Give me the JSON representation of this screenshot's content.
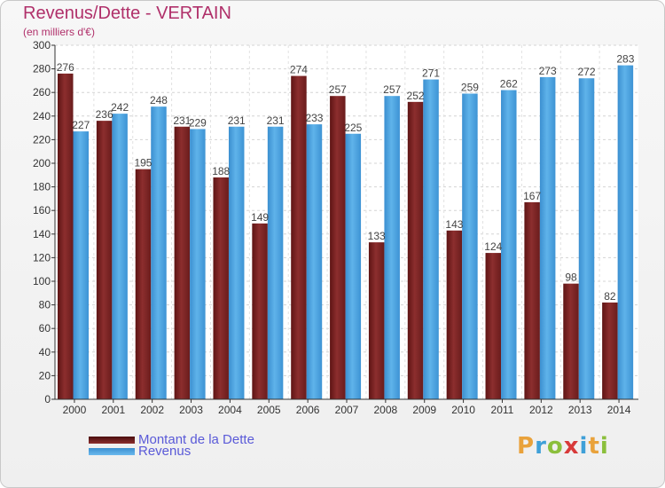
{
  "chart_data": {
    "type": "bar",
    "title": "Revenus/Dette - VERTAIN",
    "subtitle": "(en milliers d'€)",
    "categories": [
      "2000",
      "2001",
      "2002",
      "2003",
      "2004",
      "2005",
      "2006",
      "2007",
      "2008",
      "2009",
      "2010",
      "2011",
      "2012",
      "2013",
      "2014"
    ],
    "series": [
      {
        "name": "Montant de la Dette",
        "color": "#8b2a2a",
        "values": [
          276,
          236,
          195,
          231,
          188,
          149,
          274,
          257,
          133,
          252,
          143,
          124,
          167,
          98,
          82
        ],
        "labels": [
          "276",
          "236",
          "195",
          "231",
          "188",
          "149",
          "274",
          "257",
          "133",
          "252",
          "143",
          "124",
          "167",
          "98",
          "82"
        ]
      },
      {
        "name": "Revenus",
        "color": "#4aa3e0",
        "values": [
          227,
          242,
          248,
          229,
          231,
          231,
          233,
          225,
          257,
          271,
          259,
          262,
          273,
          272,
          283
        ],
        "labels": [
          "227",
          "242",
          "248",
          "229",
          "231",
          "231",
          "233",
          "225",
          "257",
          "271",
          "259",
          "262",
          "273",
          "272",
          "283"
        ]
      }
    ],
    "ylim": [
      0,
      300
    ],
    "yticks": [
      "0",
      "20",
      "40",
      "60",
      "80",
      "100",
      "120",
      "140",
      "160",
      "180",
      "200",
      "220",
      "240",
      "260",
      "280",
      "300"
    ],
    "grid": true,
    "legend_placement": "bottom-left"
  },
  "logo": {
    "text": "Proxiti",
    "letters": [
      "P",
      "r",
      "o",
      "x",
      "i",
      "t",
      "i"
    ]
  }
}
